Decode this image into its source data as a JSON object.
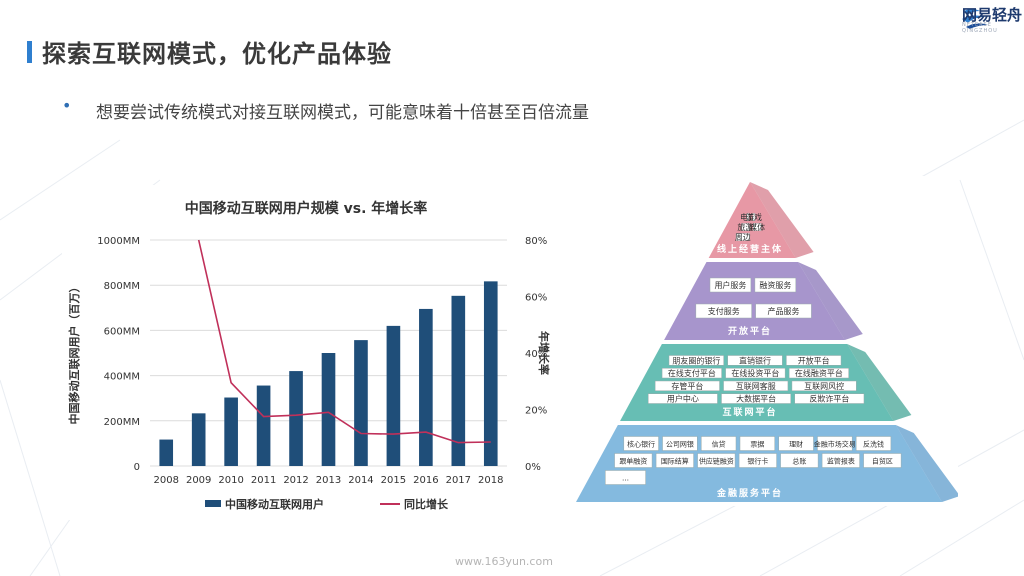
{
  "header": {
    "title": "探索互联网模式，优化产品体验",
    "logo_text": "网易轻舟",
    "logo_sub": "NETEASE QINGZHOU"
  },
  "bullets": [
    "想要尝试传统模式对接互联网模式，可能意味着十倍甚至百倍流量"
  ],
  "chart_data": {
    "type": "bar",
    "title": "中国移动互联网用户规模 vs. 年增长率",
    "categories": [
      "2008",
      "2009",
      "2010",
      "2011",
      "2012",
      "2013",
      "2014",
      "2015",
      "2016",
      "2017",
      "2018"
    ],
    "series": [
      {
        "name": "中国移动互联网用户",
        "type": "bar",
        "axis": "left",
        "values": [
          117,
          233,
          303,
          356,
          420,
          500,
          557,
          620,
          695,
          753,
          817
        ]
      },
      {
        "name": "同比增长",
        "type": "line",
        "axis": "right",
        "values": [
          null,
          80,
          29.5,
          17.5,
          18,
          19,
          11.5,
          11.3,
          12,
          8.3,
          8.5
        ]
      }
    ],
    "ylabel": "中国移动互联网用户（百万）",
    "y2label": "年增长率",
    "ylim": [
      0,
      1000
    ],
    "y2lim": [
      0,
      80
    ],
    "yticks": [
      "0",
      "200MM",
      "400MM",
      "600MM",
      "800MM",
      "1000MM"
    ],
    "y2ticks": [
      "0%",
      "20%",
      "40%",
      "60%",
      "80%"
    ],
    "bar_color": "#1f4e79",
    "line_color": "#c0305a",
    "legend": "bottom"
  },
  "pyramid": {
    "layers": [
      {
        "title": "线上经营主体",
        "color": "#e58f9d",
        "items": [
          "电商",
          "游戏",
          "旅游",
          "媒体",
          "周边"
        ]
      },
      {
        "title": "开放平台",
        "color": "#9f8cc8",
        "items": [
          "用户服务",
          "融资服务",
          "支付服务",
          "产品服务"
        ]
      },
      {
        "title": "互联网平台",
        "color": "#5ab9ae",
        "items": [
          "朋友圈的银行",
          "直销银行",
          "开放平台",
          "在线支付平台",
          "在线投资平台",
          "在线融资平台",
          "存管平台",
          "互联网客服",
          "互联网风控",
          "用户中心",
          "大数据平台",
          "反欺诈平台"
        ]
      },
      {
        "title": "金融服务平台",
        "color": "#7ab4dc",
        "items": [
          "核心银行",
          "公司网银",
          "信贷",
          "票据",
          "理财",
          "金融市场交易",
          "反洗钱",
          "跟单融资",
          "国际结算",
          "供应链融资",
          "银行卡",
          "总账",
          "监管报表",
          "自贸区",
          "…"
        ]
      }
    ]
  },
  "footer": {
    "url": "www.163yun.com"
  }
}
